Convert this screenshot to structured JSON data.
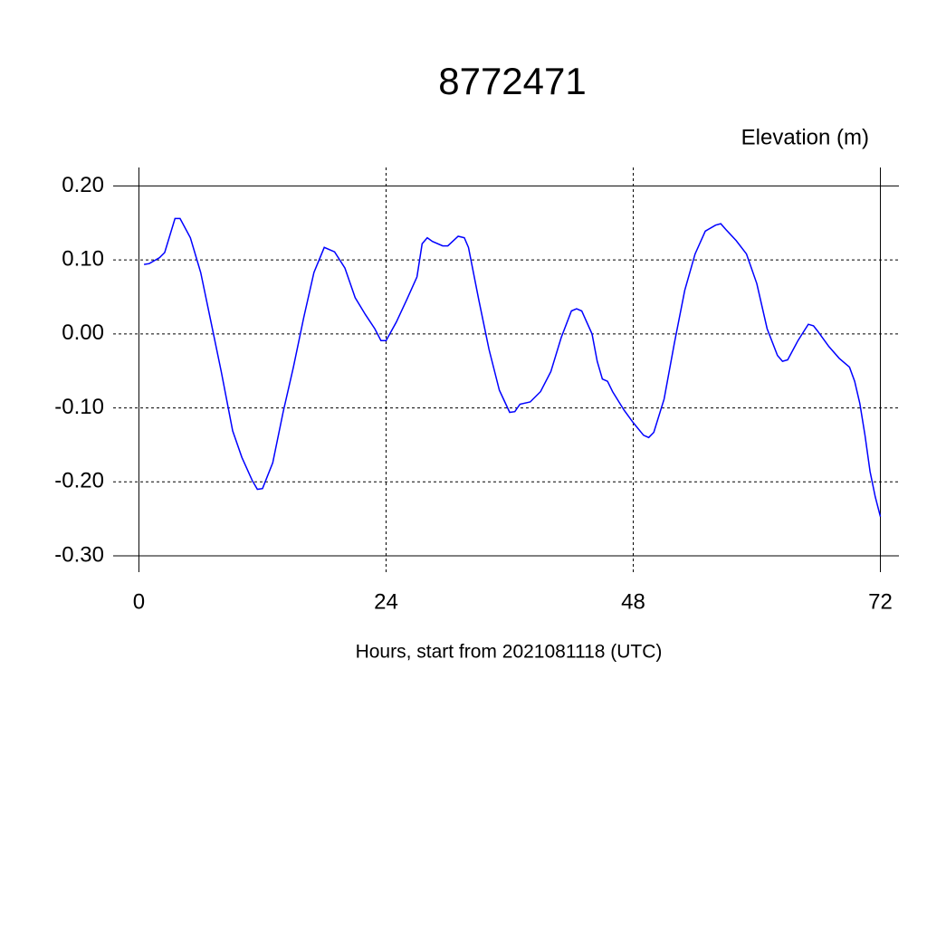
{
  "chart_data": {
    "type": "line",
    "title": "8772471",
    "y_label": "Elevation (m)",
    "x_label": "Hours, start from 2021081118 (UTC)",
    "x": [
      0.5,
      1.0,
      2.0,
      2.5,
      3.5,
      4.0,
      5.0,
      6.0,
      7.0,
      8.0,
      9.1,
      10.0,
      11.0,
      11.5,
      12.0,
      13.0,
      14.0,
      15.0,
      16.0,
      17.0,
      18.0,
      19.0,
      20.0,
      21.0,
      22.0,
      22.9,
      23.5,
      24.0,
      25.0,
      26.0,
      27.0,
      27.5,
      28.0,
      28.5,
      29.5,
      30.0,
      31.0,
      31.6,
      32.0,
      33.0,
      34.0,
      35.0,
      36.0,
      36.5,
      37.0,
      38.0,
      39.0,
      40.0,
      41.0,
      42.0,
      42.5,
      43.0,
      44.0,
      44.5,
      45.0,
      45.5,
      46.0,
      47.1,
      48.0,
      49.0,
      49.5,
      50.0,
      51.0,
      52.0,
      53.0,
      54.0,
      55.0,
      56.0,
      56.5,
      57.0,
      58.0,
      59.0,
      60.0,
      61.0,
      62.0,
      62.5,
      63.0,
      64.0,
      65.0,
      65.5,
      65.9,
      67.0,
      68.0,
      69.0,
      69.5,
      70.0,
      70.5,
      71.0,
      71.5,
      72.0
    ],
    "values": [
      0.094,
      0.095,
      0.103,
      0.11,
      0.156,
      0.156,
      0.13,
      0.083,
      0.016,
      -0.051,
      -0.131,
      -0.167,
      -0.198,
      -0.21,
      -0.209,
      -0.174,
      -0.106,
      -0.045,
      0.022,
      0.083,
      0.117,
      0.111,
      0.089,
      0.049,
      0.026,
      0.007,
      -0.009,
      -0.009,
      0.016,
      0.046,
      0.077,
      0.122,
      0.13,
      0.125,
      0.119,
      0.119,
      0.132,
      0.13,
      0.117,
      0.046,
      -0.021,
      -0.076,
      -0.106,
      -0.105,
      -0.095,
      -0.092,
      -0.078,
      -0.051,
      -0.005,
      0.031,
      0.034,
      0.031,
      0,
      -0.037,
      -0.061,
      -0.064,
      -0.078,
      -0.103,
      -0.12,
      -0.137,
      -0.14,
      -0.133,
      -0.088,
      -0.012,
      0.059,
      0.108,
      0.139,
      0.147,
      0.149,
      0.141,
      0.126,
      0.108,
      0.068,
      0.007,
      -0.029,
      -0.037,
      -0.035,
      -0.009,
      0.013,
      0.011,
      0.004,
      -0.017,
      -0.033,
      -0.045,
      -0.064,
      -0.094,
      -0.137,
      -0.186,
      -0.22,
      -0.247
    ],
    "color": "#0000ff",
    "xlim": [
      -2.5,
      73.8
    ],
    "ylim": [
      -0.322,
      0.225
    ],
    "xticks": [
      0,
      24,
      48,
      72
    ],
    "yticks": [
      {
        "value": 0.2,
        "label": "0.20"
      },
      {
        "value": 0.1,
        "label": "0.10"
      },
      {
        "value": 0,
        "label": "0.00"
      },
      {
        "value": -0.1,
        "label": "-0.10"
      },
      {
        "value": -0.2,
        "label": "-0.20"
      },
      {
        "value": -0.3,
        "label": "-0.30"
      }
    ],
    "grid": true
  }
}
